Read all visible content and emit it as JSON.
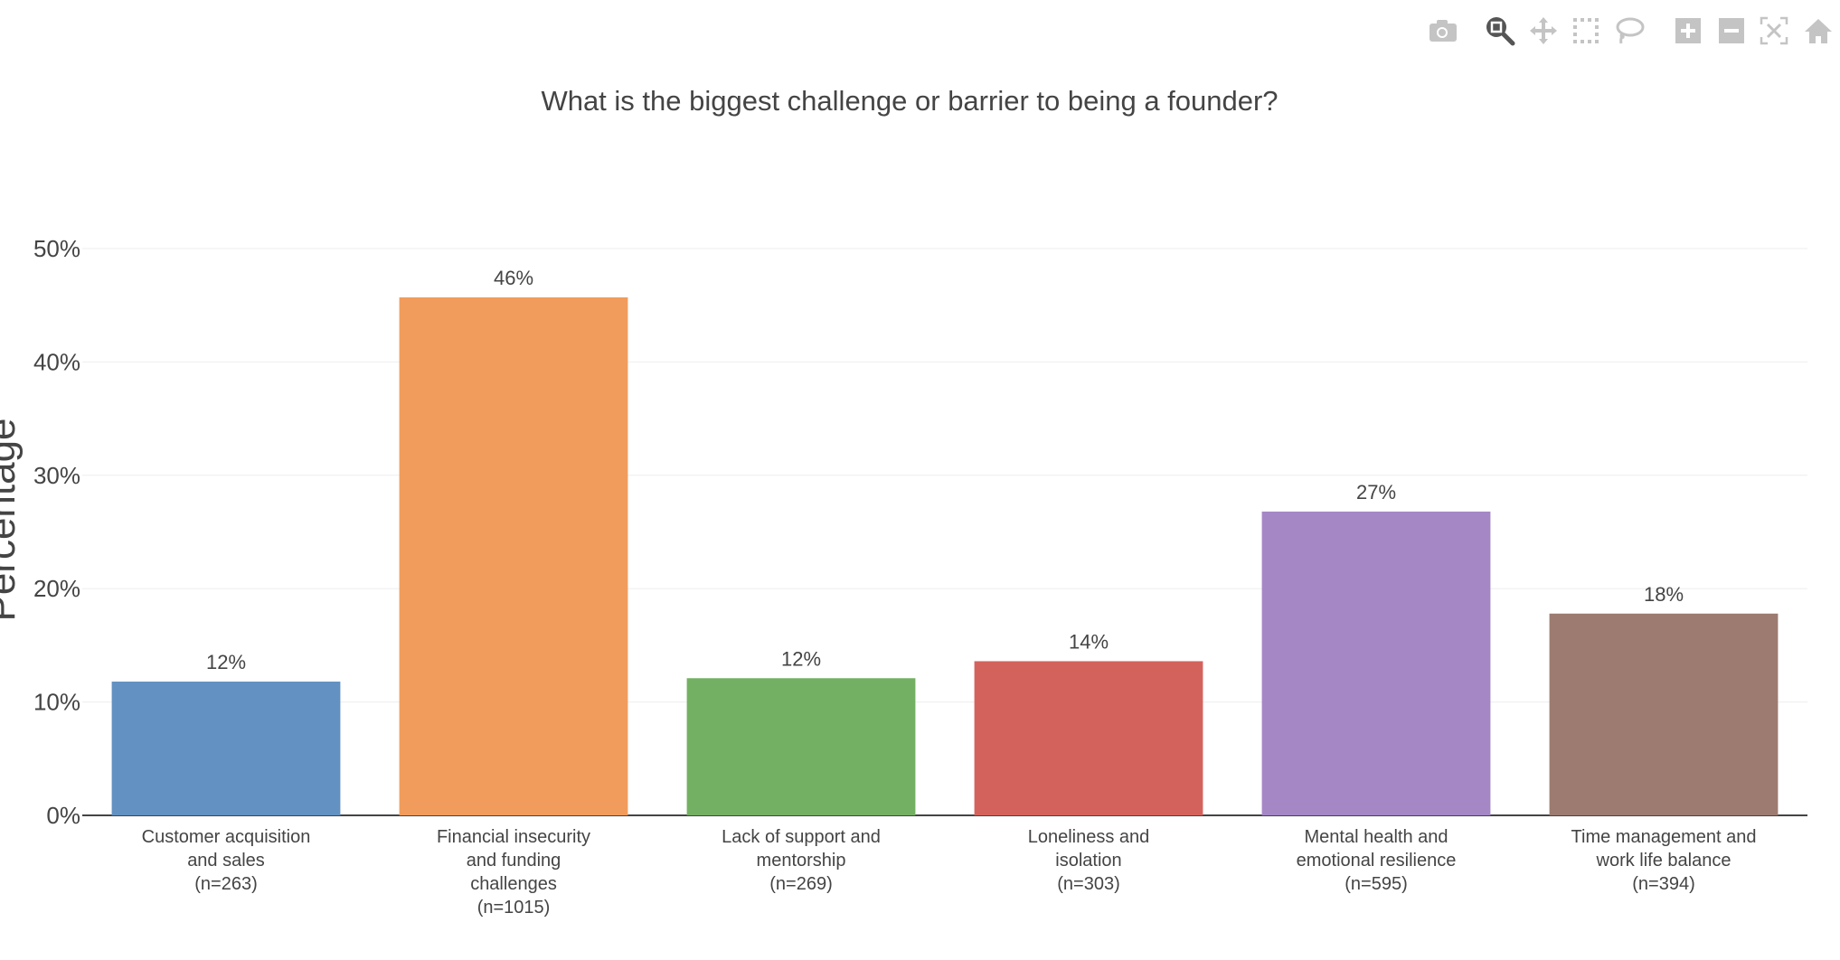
{
  "modebar": {
    "items": [
      {
        "icon": "camera-icon",
        "label": "Download plot as png"
      },
      {
        "icon": "zoom-icon",
        "label": "Zoom",
        "active": true
      },
      {
        "icon": "pan-icon",
        "label": "Pan"
      },
      {
        "icon": "box-select-icon",
        "label": "Box Select"
      },
      {
        "icon": "lasso-select-icon",
        "label": "Lasso Select"
      },
      {
        "icon": "zoom-in-icon",
        "label": "Zoom in"
      },
      {
        "icon": "zoom-out-icon",
        "label": "Zoom out"
      },
      {
        "icon": "autoscale-icon",
        "label": "Autoscale"
      },
      {
        "icon": "home-icon",
        "label": "Reset axes"
      }
    ],
    "colors": {
      "inactive": "#c4c4c4",
      "active": "#555555"
    }
  },
  "chart_data": {
    "type": "bar",
    "title": "What is the biggest challenge or barrier to being a founder?",
    "xlabel": "",
    "ylabel": "Percentage",
    "ylim": [
      0,
      50
    ],
    "yticks": [
      0,
      10,
      20,
      30,
      40,
      50
    ],
    "ytick_labels": [
      "0%",
      "10%",
      "20%",
      "30%",
      "40%",
      "50%"
    ],
    "grid": true,
    "categories": [
      [
        "Customer acquisition",
        "and sales",
        "(n=263)"
      ],
      [
        "Financial insecurity",
        "and funding",
        "challenges",
        "(n=1015)"
      ],
      [
        "Lack of support and",
        "mentorship",
        "(n=269)"
      ],
      [
        "Loneliness and",
        "isolation",
        "(n=303)"
      ],
      [
        "Mental health and",
        "emotional resilience",
        "(n=595)"
      ],
      [
        "Time management and",
        "work life balance",
        "(n=394)"
      ]
    ],
    "values": [
      11.8,
      45.7,
      12.1,
      13.6,
      26.8,
      17.8
    ],
    "data_labels": [
      "12%",
      "46%",
      "12%",
      "14%",
      "27%",
      "18%"
    ],
    "colors": [
      "#6291c2",
      "#f19c5c",
      "#74b063",
      "#d4625c",
      "#a587c6",
      "#9d7b70"
    ]
  }
}
